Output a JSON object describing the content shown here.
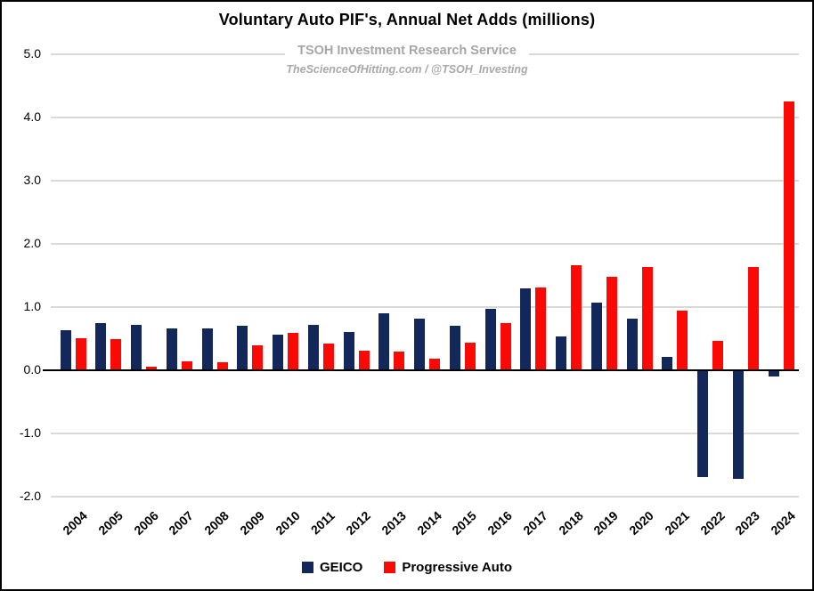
{
  "header": {
    "title": "Voluntary Auto PIF's, Annual Net Adds (millions)",
    "subtitle": "TSOH Investment Research Service",
    "subtitle2": "TheScienceOfHitting.com / @TSOH_Investing"
  },
  "legend": {
    "geico_label": "GEICO",
    "progressive_label": "Progressive Auto"
  },
  "colors": {
    "geico": "#14275b",
    "progressive": "#fb0905",
    "gridline": "#d9d9d9",
    "axis": "#000000",
    "subtitle_gray": "#a6a6a6"
  },
  "chart_data": {
    "type": "bar",
    "title": "Voluntary Auto PIF's, Annual Net Adds (millions)",
    "subtitle": "TSOH Investment Research Service",
    "annotation": "TheScienceOfHitting.com / @TSOH_Investing",
    "categories": [
      "2004",
      "2005",
      "2006",
      "2007",
      "2008",
      "2009",
      "2010",
      "2011",
      "2012",
      "2013",
      "2014",
      "2015",
      "2016",
      "2017",
      "2018",
      "2019",
      "2020",
      "2021",
      "2022",
      "2023",
      "2024"
    ],
    "series": [
      {
        "name": "GEICO",
        "color": "#14275b",
        "values": [
          0.64,
          0.75,
          0.72,
          0.66,
          0.66,
          0.7,
          0.56,
          0.72,
          0.61,
          0.9,
          0.82,
          0.71,
          0.97,
          1.29,
          0.54,
          1.07,
          0.82,
          0.21,
          -1.68,
          -1.7,
          -0.08
        ]
      },
      {
        "name": "Progressive Auto",
        "color": "#fb0905",
        "values": [
          0.51,
          0.49,
          0.06,
          0.14,
          0.13,
          0.4,
          0.59,
          0.42,
          0.31,
          0.29,
          0.18,
          0.43,
          0.75,
          1.31,
          1.66,
          1.48,
          1.63,
          0.95,
          0.46,
          1.63,
          4.25
        ]
      }
    ],
    "xlabel": "",
    "ylabel": "",
    "ylim": [
      -2.0,
      5.0
    ],
    "yticks": [
      "5.0",
      "4.0",
      "3.0",
      "2.0",
      "1.0",
      "0.0",
      "-1.0",
      "-2.0"
    ],
    "grid": true,
    "legend_position": "bottom"
  }
}
